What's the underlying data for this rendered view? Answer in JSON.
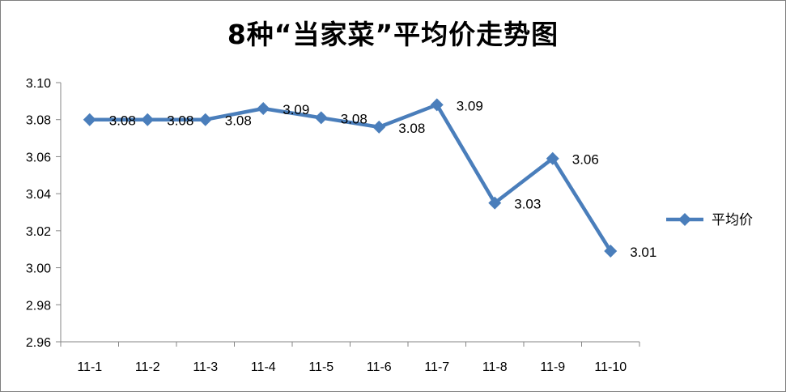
{
  "chart_data": {
    "type": "line",
    "title": "8种“当家菜”平均价走势图",
    "categories": [
      "11-1",
      "11-2",
      "11-3",
      "11-4",
      "11-5",
      "11-6",
      "11-7",
      "11-8",
      "11-9",
      "11-10"
    ],
    "series": [
      {
        "name": "平均价",
        "values": [
          3.08,
          3.08,
          3.08,
          3.086,
          3.081,
          3.076,
          3.088,
          3.035,
          3.059,
          3.009
        ],
        "labels": [
          "3.08",
          "3.08",
          "3.08",
          "3.09",
          "3.08",
          "3.08",
          "3.09",
          "3.03",
          "3.06",
          "3.01"
        ],
        "color": "#4a7ebb",
        "marker": "diamond"
      }
    ],
    "ylim": [
      2.96,
      3.1
    ],
    "yticks": [
      "2.96",
      "2.98",
      "3.00",
      "3.02",
      "3.04",
      "3.06",
      "3.08",
      "3.10"
    ],
    "grid": false,
    "legend_position": "right"
  }
}
